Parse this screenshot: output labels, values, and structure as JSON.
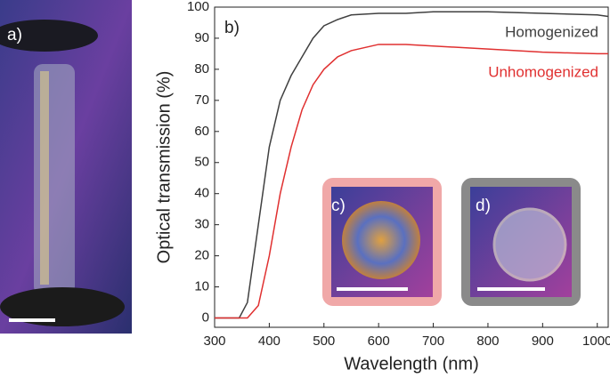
{
  "chart_data": {
    "type": "line",
    "xlabel": "Wavelength (nm)",
    "ylabel": "Optical transmission (%)",
    "panel_labels": [
      "a)",
      "b)",
      "c)",
      "d)"
    ],
    "x": [
      300,
      345,
      360,
      380,
      400,
      420,
      440,
      460,
      480,
      500,
      525,
      550,
      600,
      650,
      700,
      800,
      900,
      1000,
      1020
    ],
    "series": [
      {
        "name": "Homogenized",
        "color": "#404040",
        "values": [
          0,
          0,
          5,
          30,
          55,
          70,
          78,
          84,
          90,
          94,
          96,
          97.5,
          98,
          98,
          98.5,
          98.5,
          98,
          97.5,
          97
        ]
      },
      {
        "name": "Unhomogenized",
        "color": "#e03030",
        "values": [
          0,
          0,
          0,
          4,
          20,
          40,
          55,
          67,
          75,
          80,
          84,
          86,
          88,
          88,
          87.5,
          86.5,
          85.5,
          85,
          85
        ]
      }
    ],
    "xlim": [
      300,
      1020
    ],
    "xticks": [
      300,
      400,
      500,
      600,
      700,
      800,
      900,
      1000
    ],
    "ylim": [
      -3,
      100
    ],
    "yticks": [
      0,
      10,
      20,
      30,
      40,
      50,
      60,
      70,
      80,
      90,
      100
    ]
  }
}
